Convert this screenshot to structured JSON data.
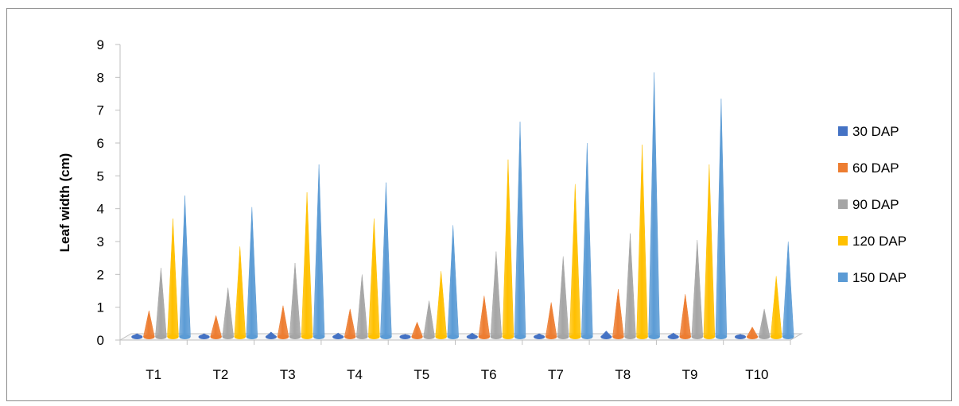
{
  "chart_data": {
    "type": "bar",
    "style": "3d-cone",
    "categories": [
      "T1",
      "T2",
      "T3",
      "T4",
      "T5",
      "T6",
      "T7",
      "T8",
      "T9",
      "T10"
    ],
    "series": [
      {
        "name": "30 DAP",
        "color": "#4472C4",
        "values": [
          0.1,
          0.1,
          0.15,
          0.12,
          0.08,
          0.12,
          0.1,
          0.18,
          0.12,
          0.08
        ]
      },
      {
        "name": "60 DAP",
        "color": "#ED7D31",
        "values": [
          0.8,
          0.65,
          0.95,
          0.85,
          0.45,
          1.25,
          1.05,
          1.45,
          1.3,
          0.3
        ]
      },
      {
        "name": "90 DAP",
        "color": "#A5A5A5",
        "values": [
          2.1,
          1.5,
          2.25,
          1.9,
          1.1,
          2.6,
          2.45,
          3.15,
          2.95,
          0.85
        ]
      },
      {
        "name": "120 DAP",
        "color": "#FFC000",
        "values": [
          3.6,
          2.75,
          4.4,
          3.6,
          2.0,
          5.4,
          4.65,
          5.85,
          5.25,
          1.85
        ]
      },
      {
        "name": "150 DAP",
        "color": "#5B9BD5",
        "values": [
          4.3,
          3.95,
          5.25,
          4.7,
          3.4,
          6.55,
          5.9,
          8.05,
          7.25,
          2.9
        ]
      }
    ],
    "xlabel": "",
    "ylabel": "Leaf width (cm)",
    "ylim": [
      0,
      9
    ],
    "yticks": [
      "0",
      "1",
      "2",
      "3",
      "4",
      "5",
      "6",
      "7",
      "8",
      "9"
    ],
    "grid": false,
    "legend_position": "right"
  }
}
